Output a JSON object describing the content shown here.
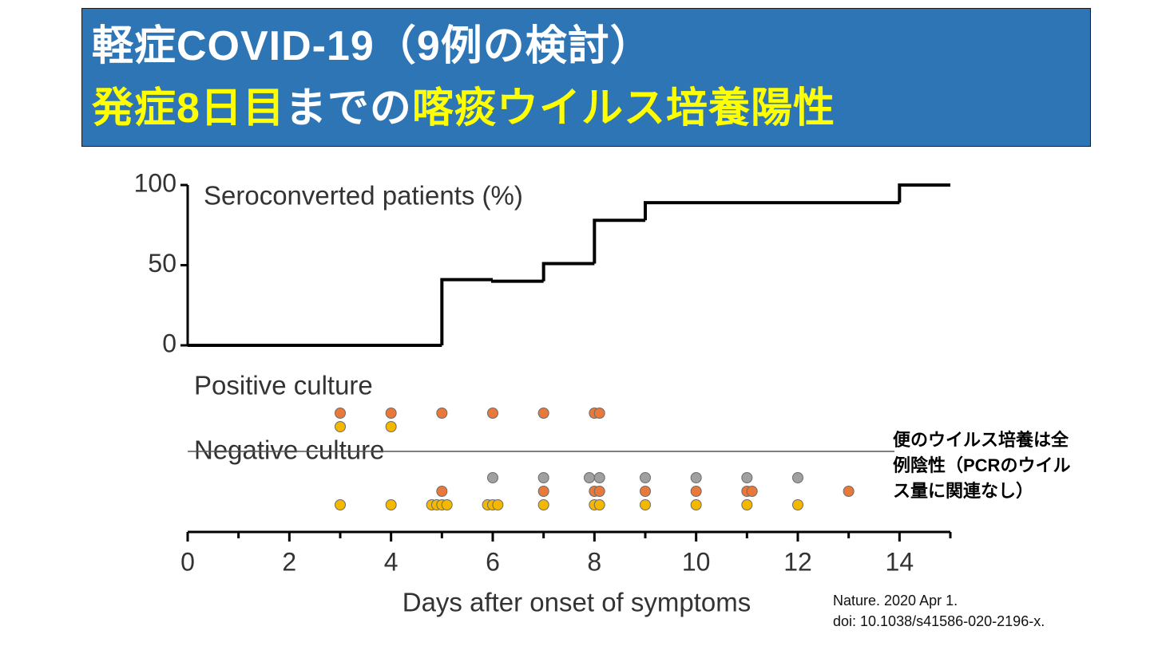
{
  "header": {
    "lines": [
      [
        {
          "text": "軽症COVID-19（9例の検討）",
          "color": "#ffffff"
        }
      ],
      [
        {
          "text": "発症8日目",
          "color": "#ffff00"
        },
        {
          "text": "までの",
          "color": "#ffffff"
        },
        {
          "text": "喀痰ウイルス培養陽性",
          "color": "#ffff00"
        }
      ]
    ]
  },
  "chart_data": {
    "type": "step",
    "ylabel": "Seroconverted patients (%)",
    "xlabel": "Days after onset of symptoms",
    "x": [
      0,
      5,
      6,
      7,
      8,
      9,
      14
    ],
    "values": [
      0,
      41,
      40,
      51,
      78,
      89,
      100
    ],
    "color": "#000000",
    "ylim": [
      0,
      100
    ],
    "yticks": [
      0,
      50,
      100
    ],
    "xlim": [
      0,
      15
    ],
    "xticks": [
      0,
      2,
      4,
      6,
      8,
      10,
      12,
      14
    ],
    "xminorticks": [
      1,
      3,
      5,
      7,
      9,
      11,
      13,
      15
    ],
    "strips": [
      {
        "label": "Positive culture",
        "series": [
          {
            "color": "#e8793a",
            "x": [
              3,
              4,
              5,
              6,
              7,
              8,
              8.1
            ]
          },
          {
            "color": "#f5b800",
            "x": [
              3,
              4
            ]
          }
        ]
      },
      {
        "label": "Negative culture",
        "series": [
          {
            "color": "#a0a0a0",
            "x": [
              6,
              7,
              7.9,
              8.1,
              9,
              10,
              11,
              12
            ]
          },
          {
            "color": "#e8793a",
            "x": [
              5,
              7,
              8,
              8.1,
              9,
              10,
              11,
              11.1,
              13
            ]
          },
          {
            "color": "#f5b800",
            "x": [
              3,
              4,
              4.8,
              4.9,
              5,
              5.1,
              5.9,
              6,
              6.1,
              7,
              8,
              8.1,
              9,
              10,
              11,
              12
            ]
          }
        ]
      }
    ]
  },
  "note": [
    "便のウイルス培養は全",
    "例陰性（PCRのウイル",
    "ス量に関連なし）"
  ],
  "citation": [
    "Nature. 2020 Apr 1.",
    "doi: 10.1038/s41586-020-2196-x."
  ]
}
